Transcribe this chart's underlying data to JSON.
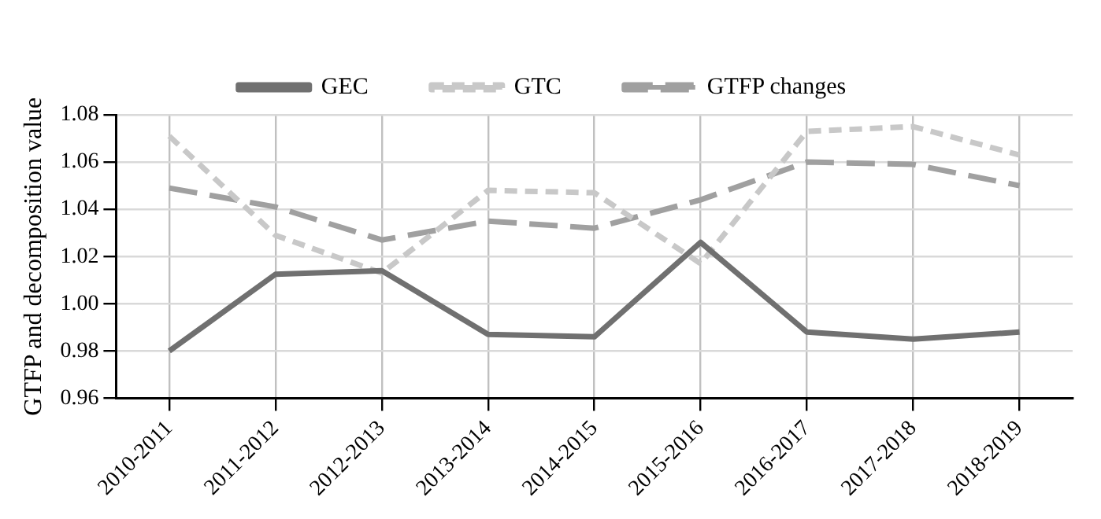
{
  "chart_data": {
    "type": "line",
    "ylabel": "GTFP and decomposition value",
    "categories": [
      "2010-2011",
      "2011-2012",
      "2012-2013",
      "2013-2014",
      "2014-2015",
      "2015-2016",
      "2016-2017",
      "2017-2018",
      "2018-2019"
    ],
    "series": [
      {
        "name": "GEC",
        "color": "#707070",
        "line_style": "solid",
        "values": [
          0.98,
          1.0125,
          1.014,
          0.987,
          0.986,
          1.026,
          0.988,
          0.985,
          0.988
        ]
      },
      {
        "name": "GTC",
        "color": "#c8c8c8",
        "line_style": "dashed",
        "values": [
          1.071,
          1.029,
          1.013,
          1.048,
          1.047,
          1.017,
          1.073,
          1.075,
          1.063
        ]
      },
      {
        "name": "GTFP changes",
        "color": "#a0a0a0",
        "line_style": "longdash",
        "values": [
          1.049,
          1.041,
          1.027,
          1.035,
          1.032,
          1.044,
          1.06,
          1.059,
          1.05
        ]
      }
    ],
    "ylim": [
      0.96,
      1.08
    ],
    "yticks": [
      {
        "value": 0.96,
        "label": "0.96"
      },
      {
        "value": 0.98,
        "label": "0.98"
      },
      {
        "value": 1.0,
        "label": "1.00"
      },
      {
        "value": 1.02,
        "label": "1.02"
      },
      {
        "value": 1.04,
        "label": "1.04"
      },
      {
        "value": 1.06,
        "label": "1.06"
      },
      {
        "value": 1.08,
        "label": "1.08"
      }
    ],
    "grid": true,
    "legend": "top",
    "marker": "none"
  }
}
